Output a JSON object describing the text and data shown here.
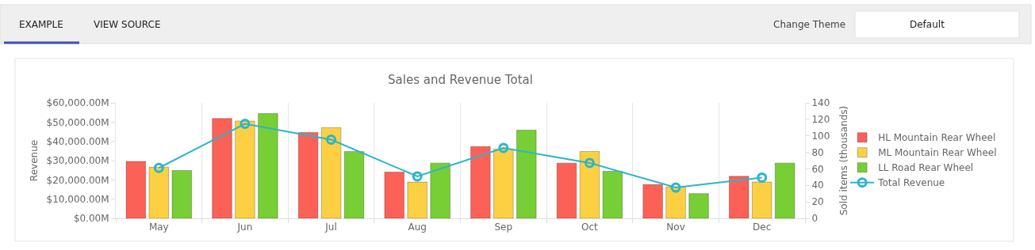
{
  "chart_data": {
    "type": "bar",
    "title": "Sales and Revenue Total",
    "ylabel": "Revenue",
    "y2label": "Sold items (thousands)",
    "annotations": [
      "EXAMPLE",
      "VIEW SOURCE",
      "Change Theme",
      "Default"
    ],
    "categories": [
      "May",
      "Jun",
      "Jul",
      "Aug",
      "Sep",
      "Oct",
      "Nov",
      "Dec"
    ],
    "series": [
      {
        "name": "HL Mountain Rear Wheel",
        "color": "#fc6157",
        "axis": "y2",
        "values": [
          69,
          121,
          104,
          56,
          87,
          67,
          41,
          51
        ]
      },
      {
        "name": "ML Mountain Rear Wheel",
        "color": "#fdd043",
        "axis": "y2",
        "values": [
          62,
          118,
          110,
          44,
          84,
          81,
          38,
          44
        ]
      },
      {
        "name": "LL Road Rear Wheel",
        "color": "#77cf35",
        "axis": "y2",
        "values": [
          58,
          127,
          81,
          67,
          107,
          57,
          30,
          67
        ]
      },
      {
        "name": "Total Revenue",
        "type": "line",
        "color": "#2bb5cc",
        "axis": "y",
        "values": [
          26200,
          49100,
          40900,
          21800,
          36600,
          28800,
          16000,
          21200
        ]
      }
    ],
    "ylim": [
      0,
      60000
    ],
    "yticks": [
      {
        "value": 0,
        "label": "$0.00M"
      },
      {
        "value": 10000,
        "label": "$10,000.00M"
      },
      {
        "value": 20000,
        "label": "$20,000.00M"
      },
      {
        "value": 30000,
        "label": "$30,000.00M"
      },
      {
        "value": 40000,
        "label": "$40,000.00M"
      },
      {
        "value": 50000,
        "label": "$50,000.00M"
      },
      {
        "value": 60000,
        "label": "$60,000.00M"
      }
    ],
    "y2lim": [
      0,
      140
    ],
    "y2ticks": [
      0,
      20,
      40,
      60,
      80,
      100,
      120,
      140
    ],
    "grid": "x",
    "legend": "right",
    "marker": "circle",
    "line_style": "solid"
  }
}
